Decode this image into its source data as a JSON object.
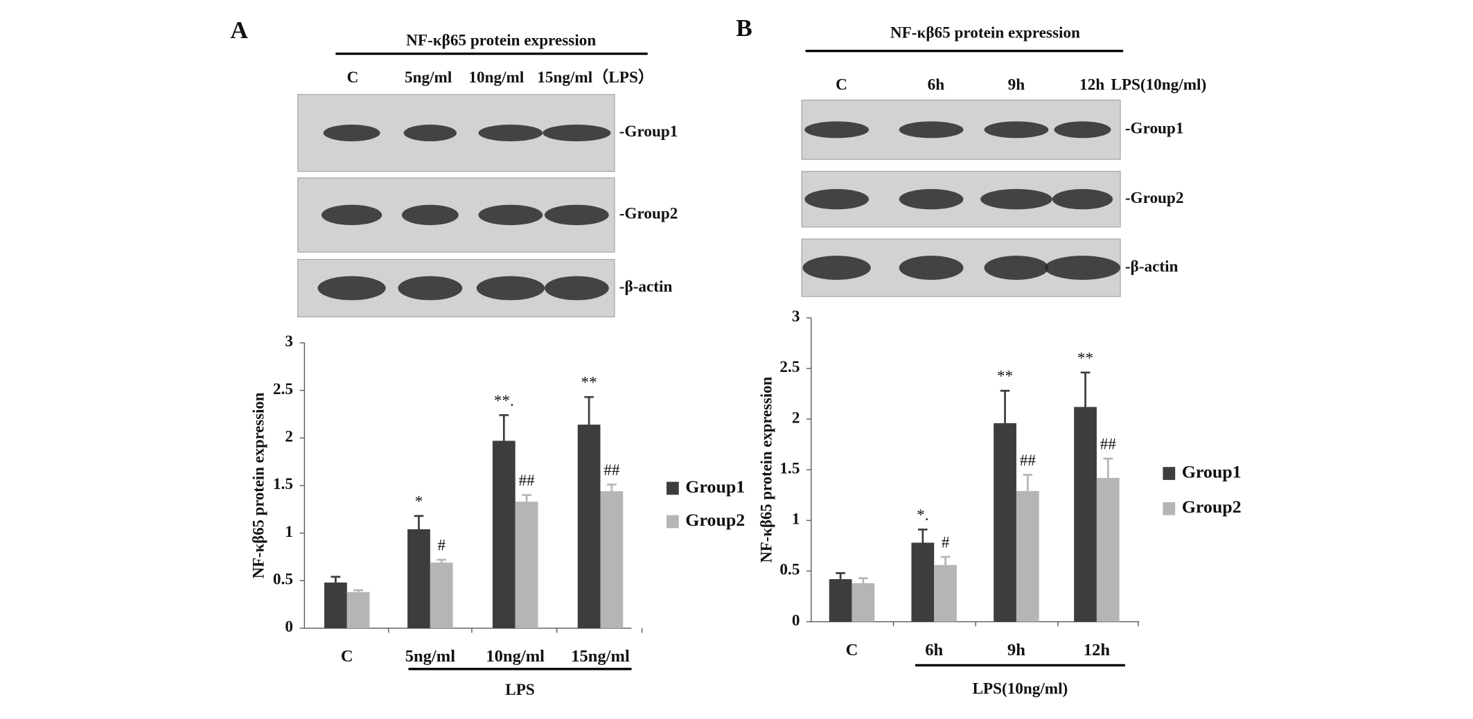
{
  "panels": [
    {
      "letter": "A",
      "blot": {
        "title": "NF-κβ65 protein expression",
        "lanes": [
          "C",
          "5ng/ml",
          "10ng/ml",
          "15ng/ml（LPS）"
        ],
        "rows": [
          "-Group1",
          "-Group2",
          "-β-actin"
        ]
      }
    },
    {
      "letter": "B",
      "blot": {
        "title": "NF-κβ65 protein expression",
        "lanes": [
          "C",
          "6h",
          "9h",
          "12h"
        ],
        "treatment": "LPS(10ng/ml)",
        "rows": [
          "-Group1",
          "-Group2",
          "-β-actin"
        ]
      }
    }
  ],
  "chart_data": [
    {
      "type": "bar",
      "y_label": "NF-κβ65 protein expression",
      "group_label": "LPS",
      "categories": [
        "C",
        "5ng/ml",
        "10ng/ml",
        "15ng/ml"
      ],
      "series": [
        {
          "name": "Group1",
          "color": "#3d3d3d",
          "values": [
            0.48,
            1.04,
            1.97,
            2.14
          ],
          "errors": [
            0.06,
            0.14,
            0.27,
            0.29
          ],
          "annotations": [
            null,
            "*",
            "**.",
            "**"
          ]
        },
        {
          "name": "Group2",
          "color": "#b5b5b5",
          "values": [
            0.38,
            0.69,
            1.33,
            1.44
          ],
          "errors": [
            0.02,
            0.03,
            0.07,
            0.07
          ],
          "annotations": [
            null,
            "#",
            "##",
            "##"
          ]
        }
      ],
      "ylim": [
        0,
        3
      ],
      "yticks": [
        0,
        0.5,
        1,
        1.5,
        2,
        2.5,
        3
      ],
      "legend": "right"
    },
    {
      "type": "bar",
      "y_label": "NF-κβ65 protein expression",
      "group_label": "LPS(10ng/ml)",
      "categories": [
        "C",
        "6h",
        "9h",
        "12h"
      ],
      "series": [
        {
          "name": "Group1",
          "color": "#3d3d3d",
          "values": [
            0.42,
            0.78,
            1.96,
            2.12
          ],
          "errors": [
            0.06,
            0.13,
            0.32,
            0.34
          ],
          "annotations": [
            null,
            "*.",
            "**",
            "**"
          ]
        },
        {
          "name": "Group2",
          "color": "#b5b5b5",
          "values": [
            0.38,
            0.56,
            1.29,
            1.42
          ],
          "errors": [
            0.05,
            0.08,
            0.16,
            0.19
          ],
          "annotations": [
            null,
            "#",
            "##",
            "##"
          ]
        }
      ],
      "ylim": [
        0,
        3
      ],
      "yticks": [
        0,
        0.5,
        1,
        1.5,
        2,
        2.5,
        3
      ],
      "legend": "right"
    }
  ]
}
